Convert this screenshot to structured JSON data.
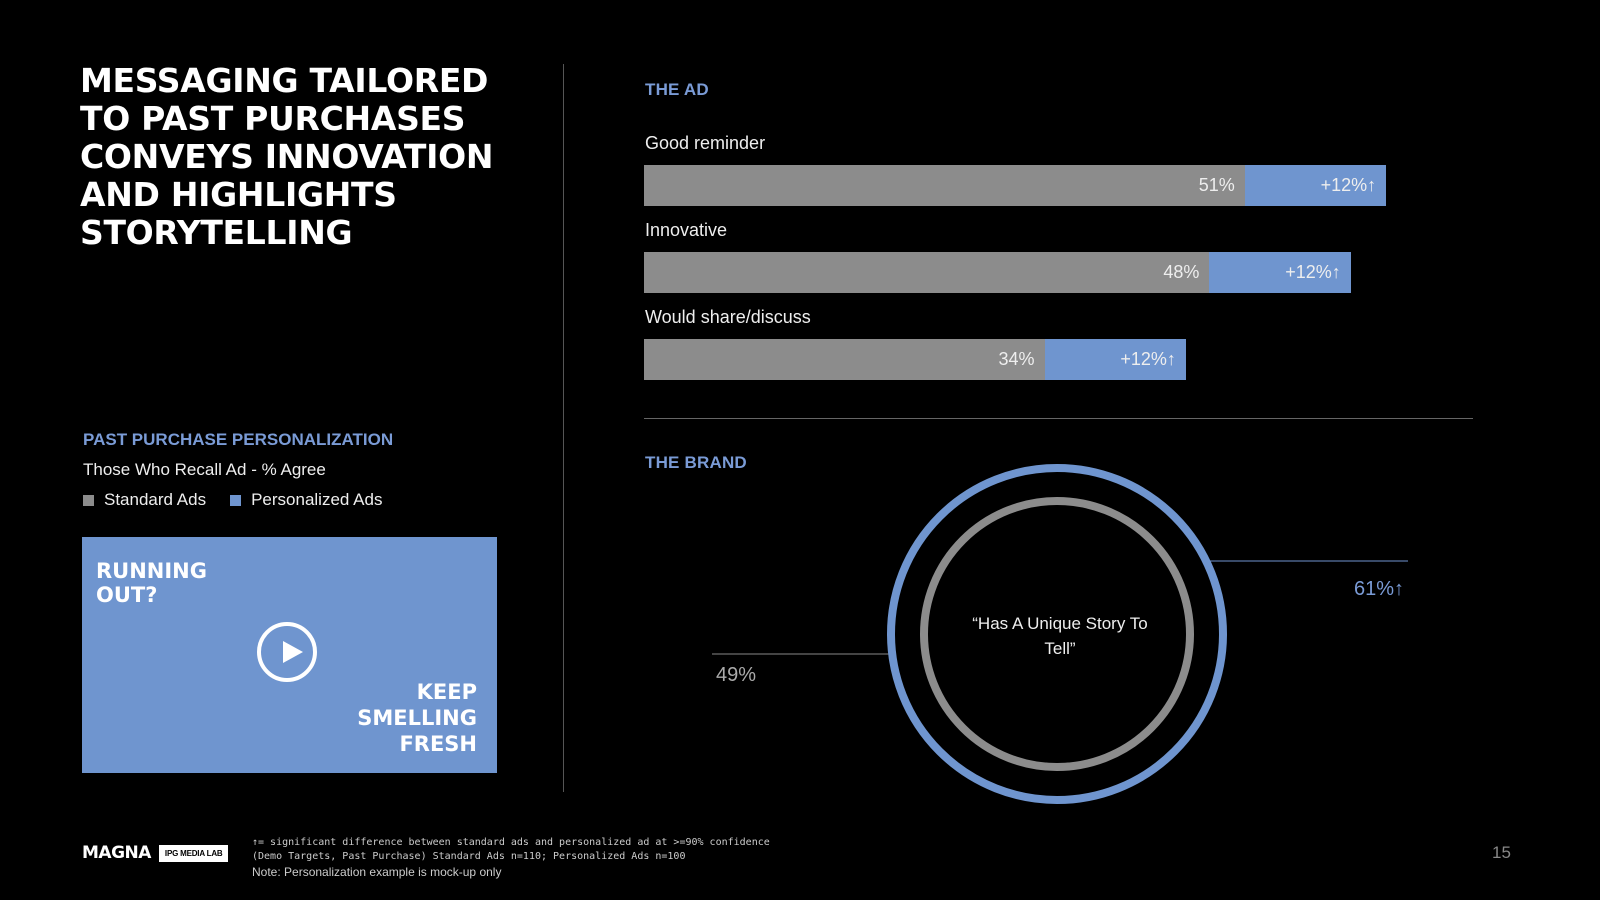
{
  "title_lines": [
    "MESSAGING TAILORED",
    "TO PAST PURCHASES",
    "CONVEYS INNOVATION",
    "AND HIGHLIGHTS",
    "STORYTELLING"
  ],
  "legend": {
    "title": "PAST PURCHASE PERSONALIZATION",
    "subtitle": "Those Who Recall Ad - % Agree",
    "standard_label": "Standard Ads",
    "personalized_label": "Personalized Ads"
  },
  "video": {
    "top_text": "RUNNING OUT?",
    "bottom_text": "KEEP SMELLING FRESH"
  },
  "sections": {
    "ad": "THE AD",
    "brand": "THE BRAND"
  },
  "colors": {
    "standard": "#8c8c8c",
    "personalized": "#6f95cf",
    "accent_text": "#7a9bd6"
  },
  "chart_data": [
    {
      "type": "bar",
      "orientation": "horizontal",
      "stacked": true,
      "categories": [
        "Good reminder",
        "Innovative",
        "Would share/discuss"
      ],
      "series": [
        {
          "name": "Standard Ads",
          "values": [
            51,
            48,
            34
          ],
          "labels": [
            "51%",
            "48%",
            "34%"
          ]
        },
        {
          "name": "Personalized Ads",
          "values": [
            12,
            12,
            12
          ],
          "labels": [
            "+12%↑",
            "+12%↑",
            "+12%↑"
          ]
        }
      ]
    },
    {
      "type": "pie",
      "style": "concentric-rings",
      "center_label": "“Has A Unique Story To Tell”",
      "series": [
        {
          "name": "Standard Ads",
          "value": 49,
          "label": "49%"
        },
        {
          "name": "Personalized Ads",
          "value": 61,
          "label": "61%↑"
        }
      ]
    }
  ],
  "footer": {
    "logo_text": "MAGNA",
    "lab_badge": "IPG MEDIA LAB",
    "note_1": "↑= significant difference between standard ads and personalized ad at >=90% confidence",
    "note_2": "(Demo Targets, Past Purchase) Standard Ads n=110; Personalized Ads n=100",
    "note_3": "Note: Personalization example is mock-up only",
    "page_number": "15"
  }
}
